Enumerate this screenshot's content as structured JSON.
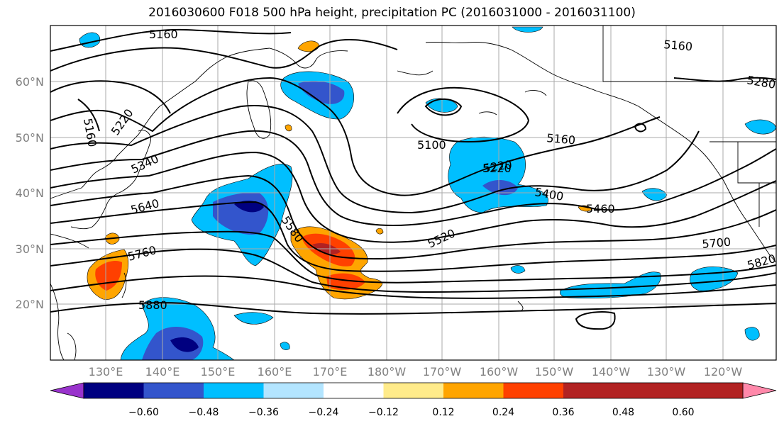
{
  "title": "2016030600 F018 500 hPa height, precipitation PC (2016031000 - 2016031100)",
  "map": {
    "lat_labels": [
      "60°N",
      "50°N",
      "40°N",
      "30°N",
      "20°N"
    ],
    "lon_labels": [
      "130°E",
      "140°E",
      "150°E",
      "160°E",
      "170°E",
      "180°W",
      "170°W",
      "160°W",
      "150°W",
      "140°W",
      "130°W",
      "120°W"
    ],
    "contour_labels": [
      "5160",
      "5160",
      "5220",
      "5280",
      "5160",
      "5220",
      "5100",
      "5160",
      "5340",
      "5220",
      "5400",
      "5460",
      "5640",
      "5580",
      "5520",
      "5760",
      "5700",
      "5820",
      "5880"
    ]
  },
  "colorbar": {
    "colors": [
      "#9933cc",
      "#000080",
      "#3355cc",
      "#00bfff",
      "#b3e5ff",
      "#ffffff",
      "#ffeb8a",
      "#ffa500",
      "#ff4000",
      "#b22222",
      "#ff88aa"
    ],
    "ticks": [
      "−0.60",
      "−0.48",
      "−0.36",
      "−0.24",
      "−0.12",
      "0.12",
      "0.24",
      "0.36",
      "0.48",
      "0.60"
    ]
  }
}
